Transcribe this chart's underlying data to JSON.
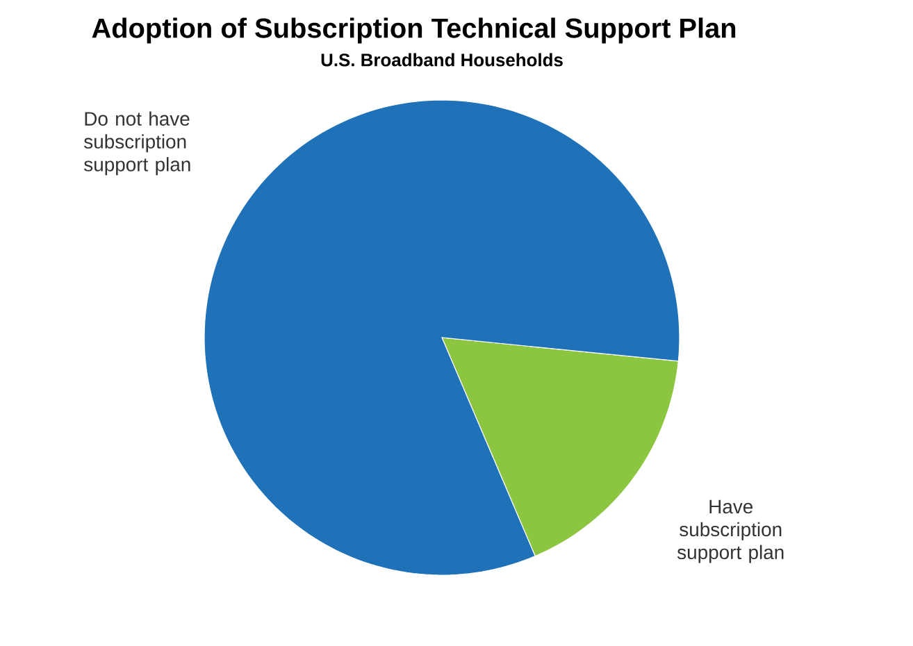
{
  "chart_data": {
    "type": "pie",
    "title": "Adoption of Subscription Technical Support Plan",
    "subtitle": "U.S. Broadband Households",
    "categories": [
      "Have subscription support plan",
      "Do not have subscription support plan"
    ],
    "values": [
      17,
      83
    ],
    "colors": [
      "#8cc540",
      "#1f72b8"
    ]
  }
}
